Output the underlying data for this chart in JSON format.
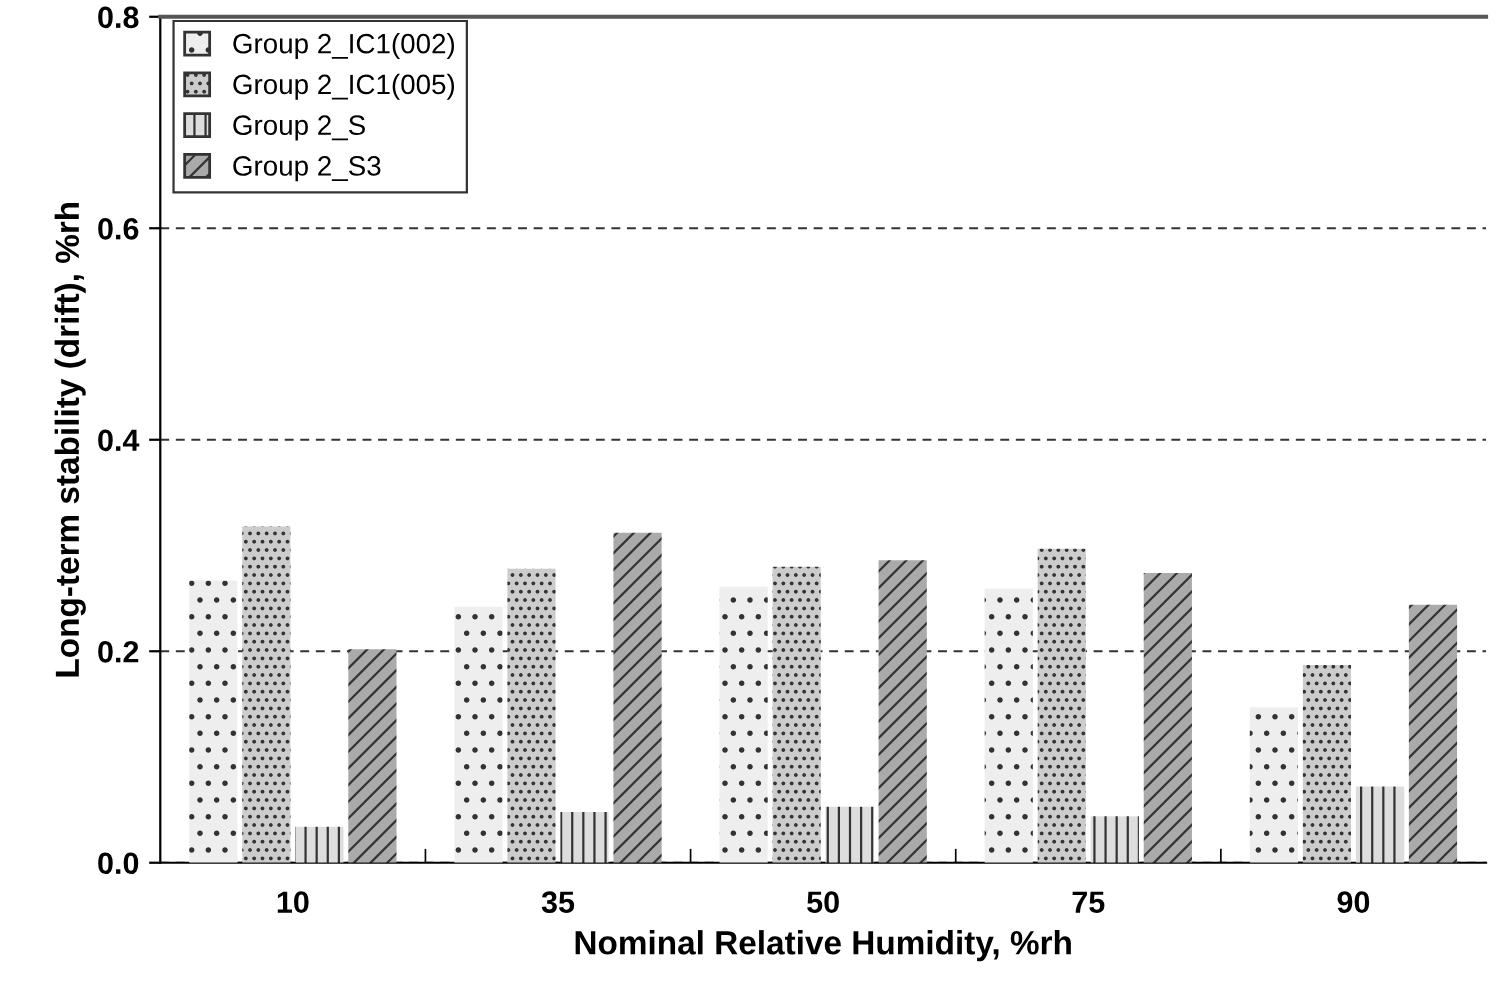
{
  "chart_data": {
    "type": "bar",
    "xlabel": "Nominal Relative Humidity, %rh",
    "ylabel": "Long-term stability (drift), %rh",
    "categories": [
      "10",
      "35",
      "50",
      "75",
      "90"
    ],
    "series": [
      {
        "name": "Group 2_IC1(002)",
        "color": "#eeeeee",
        "values": [
          0.267,
          0.242,
          0.261,
          0.259,
          0.147
        ]
      },
      {
        "name": "Group 2_IC1(005)",
        "color": "#cccccc",
        "values": [
          0.318,
          0.278,
          0.28,
          0.297,
          0.187
        ]
      },
      {
        "name": "Group 2_S",
        "color": "#dddddd",
        "values": [
          0.034,
          0.048,
          0.053,
          0.044,
          0.072
        ]
      },
      {
        "name": "Group 2_S3",
        "color": "#aaaaaa",
        "values": [
          0.202,
          0.312,
          0.286,
          0.274,
          0.244
        ]
      }
    ],
    "ylim": [
      0,
      0.8
    ],
    "yticks": [
      {
        "value": 0,
        "label": "0.0"
      },
      {
        "value": 0.2,
        "label": "0.2"
      },
      {
        "value": 0.4,
        "label": "0.4"
      },
      {
        "value": 0.6,
        "label": "0.6"
      },
      {
        "value": 0.8,
        "label": "0.8"
      }
    ],
    "grid": "y",
    "legend": "top left"
  }
}
